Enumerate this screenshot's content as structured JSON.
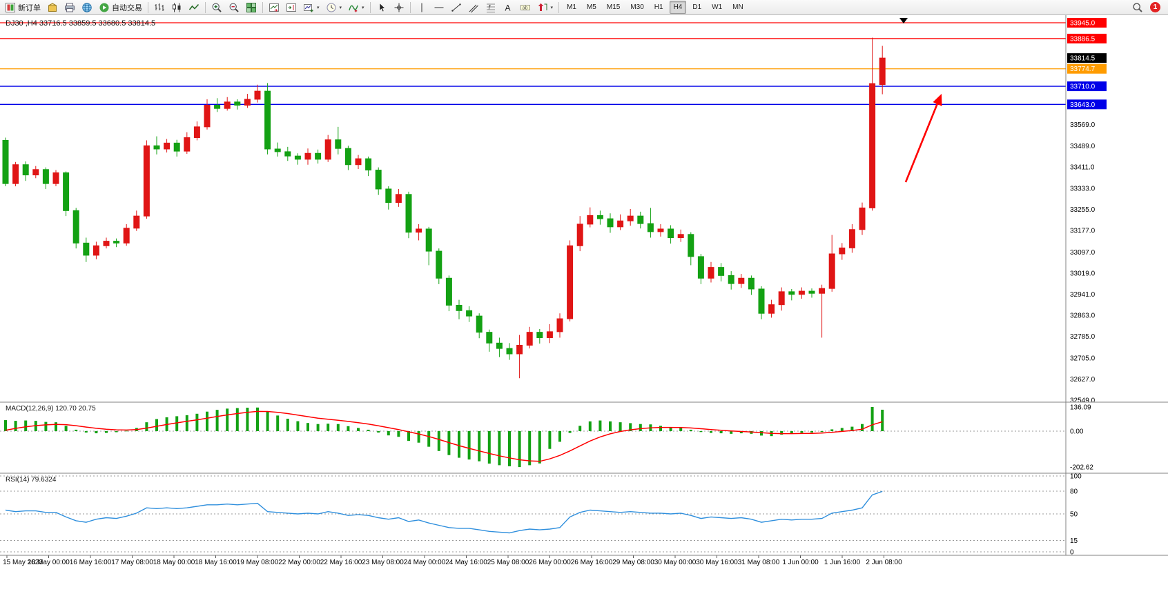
{
  "toolbar": {
    "groups": [
      {
        "items": [
          {
            "name": "new-order",
            "icon": "new-order",
            "label": "新订单"
          },
          {
            "name": "market",
            "icon": "cube"
          },
          {
            "name": "print",
            "icon": "printer"
          },
          {
            "name": "community",
            "icon": "globe"
          },
          {
            "name": "autotrading",
            "icon": "play",
            "label": "自动交易"
          }
        ]
      },
      {
        "items": [
          {
            "name": "bar-chart-mode",
            "icon": "bars"
          },
          {
            "name": "candle-chart-mode",
            "icon": "candles"
          },
          {
            "name": "line-chart-mode",
            "icon": "polyline"
          }
        ]
      },
      {
        "items": [
          {
            "name": "zoom-in",
            "icon": "zoom-in"
          },
          {
            "name": "zoom-out",
            "icon": "zoom-out"
          },
          {
            "name": "tile-windows",
            "icon": "tiles"
          }
        ]
      },
      {
        "items": [
          {
            "name": "auto-scroll",
            "icon": "chart-arrow"
          },
          {
            "name": "chart-shift",
            "icon": "chart-shift"
          },
          {
            "name": "new-chart",
            "icon": "chart-plus",
            "dropdown": true
          },
          {
            "name": "periods",
            "icon": "clock",
            "dropdown": true
          },
          {
            "name": "indicators-menu",
            "icon": "indicator",
            "dropdown": true
          }
        ]
      },
      {
        "items": [
          {
            "name": "cursor-tool",
            "icon": "cursor"
          },
          {
            "name": "crosshair-tool",
            "icon": "crosshair"
          }
        ]
      },
      {
        "items": [
          {
            "name": "vertical-line-tool",
            "icon": "vline"
          },
          {
            "name": "horizontal-line-tool",
            "icon": "hline"
          },
          {
            "name": "trendline-tool",
            "icon": "tline"
          },
          {
            "name": "channel-tool",
            "icon": "channel"
          },
          {
            "name": "fibonacci-tool",
            "icon": "fibo"
          },
          {
            "name": "text-tool",
            "icon": "textA"
          },
          {
            "name": "label-tool",
            "icon": "label"
          },
          {
            "name": "arrows-tool",
            "icon": "arrowobj",
            "dropdown": true
          }
        ]
      }
    ],
    "timeframes": [
      "M1",
      "M5",
      "M15",
      "M30",
      "H1",
      "H4",
      "D1",
      "W1",
      "MN"
    ],
    "active_timeframe": "H4",
    "notification_count": "1"
  },
  "chart_data": {
    "type": "candlestick",
    "title": "DJ30 ,H4 33716.5 33859.5 33680.5 33814.5",
    "symbol": "DJ30",
    "period": "H4",
    "ohlc": {
      "open": 33716.5,
      "high": 33859.5,
      "low": 33680.5,
      "close": 33814.5
    },
    "convention": "red = bullish, green = bearish",
    "colors": {
      "bull": "#e01515",
      "bear": "#13a113",
      "hline_red": "#ff0000",
      "hline_orange": "#ff9c00",
      "hline_blue": "#0000e8",
      "current_tag": "#000000",
      "macd_histogram": "#13a113",
      "macd_signal": "#ff0000",
      "rsi_line": "#2f8fdd"
    },
    "candles": [
      [
        33510,
        33520,
        33340,
        33350
      ],
      [
        33350,
        33430,
        33340,
        33420
      ],
      [
        33420,
        33432,
        33360,
        33382
      ],
      [
        33382,
        33415,
        33370,
        33402
      ],
      [
        33402,
        33410,
        33330,
        33350
      ],
      [
        33350,
        33400,
        33340,
        33390
      ],
      [
        33390,
        33395,
        33230,
        33250
      ],
      [
        33250,
        33260,
        33110,
        33130
      ],
      [
        33130,
        33150,
        33060,
        33085
      ],
      [
        33085,
        33135,
        33070,
        33120
      ],
      [
        33120,
        33150,
        33110,
        33137
      ],
      [
        33137,
        33147,
        33115,
        33130
      ],
      [
        33130,
        33200,
        33120,
        33185
      ],
      [
        33185,
        33250,
        33175,
        33230
      ],
      [
        33230,
        33510,
        33220,
        33490
      ],
      [
        33490,
        33525,
        33458,
        33478
      ],
      [
        33478,
        33515,
        33465,
        33500
      ],
      [
        33500,
        33512,
        33450,
        33470
      ],
      [
        33470,
        33540,
        33460,
        33520
      ],
      [
        33520,
        33580,
        33510,
        33560
      ],
      [
        33560,
        33662,
        33550,
        33640
      ],
      [
        33640,
        33666,
        33615,
        33628
      ],
      [
        33628,
        33670,
        33620,
        33652
      ],
      [
        33652,
        33662,
        33624,
        33640
      ],
      [
        33640,
        33682,
        33630,
        33662
      ],
      [
        33662,
        33716,
        33650,
        33692
      ],
      [
        33692,
        33722,
        33458,
        33478
      ],
      [
        33478,
        33502,
        33450,
        33468
      ],
      [
        33468,
        33486,
        33434,
        33452
      ],
      [
        33452,
        33462,
        33420,
        33440
      ],
      [
        33440,
        33480,
        33420,
        33462
      ],
      [
        33462,
        33476,
        33424,
        33440
      ],
      [
        33440,
        33530,
        33430,
        33512
      ],
      [
        33512,
        33560,
        33458,
        33480
      ],
      [
        33480,
        33490,
        33400,
        33420
      ],
      [
        33420,
        33456,
        33404,
        33442
      ],
      [
        33442,
        33450,
        33378,
        33400
      ],
      [
        33400,
        33410,
        33308,
        33330
      ],
      [
        33330,
        33340,
        33254,
        33280
      ],
      [
        33280,
        33330,
        33264,
        33310
      ],
      [
        33310,
        33320,
        33148,
        33170
      ],
      [
        33170,
        33200,
        33140,
        33182
      ],
      [
        33182,
        33190,
        33048,
        33100
      ],
      [
        33100,
        33110,
        32978,
        33000
      ],
      [
        33000,
        33010,
        32878,
        32900
      ],
      [
        32900,
        32920,
        32848,
        32880
      ],
      [
        32880,
        32896,
        32838,
        32860
      ],
      [
        32860,
        32870,
        32778,
        32800
      ],
      [
        32800,
        32810,
        32728,
        32760
      ],
      [
        32760,
        32780,
        32708,
        32740
      ],
      [
        32740,
        32760,
        32698,
        32720
      ],
      [
        32720,
        32790,
        32630,
        32752
      ],
      [
        32752,
        32820,
        32740,
        32800
      ],
      [
        32800,
        32812,
        32758,
        32780
      ],
      [
        32780,
        32830,
        32760,
        32802
      ],
      [
        32802,
        32870,
        32780,
        32850
      ],
      [
        32850,
        33140,
        32840,
        33120
      ],
      [
        33120,
        33230,
        33100,
        33200
      ],
      [
        33200,
        33262,
        33188,
        33232
      ],
      [
        33232,
        33250,
        33198,
        33220
      ],
      [
        33220,
        33240,
        33168,
        33190
      ],
      [
        33190,
        33236,
        33178,
        33212
      ],
      [
        33212,
        33256,
        33194,
        33230
      ],
      [
        33230,
        33246,
        33184,
        33202
      ],
      [
        33202,
        33260,
        33150,
        33172
      ],
      [
        33172,
        33200,
        33154,
        33182
      ],
      [
        33182,
        33196,
        33128,
        33150
      ],
      [
        33150,
        33180,
        33134,
        33162
      ],
      [
        33162,
        33170,
        33048,
        33080
      ],
      [
        33080,
        33090,
        32978,
        33000
      ],
      [
        33000,
        33060,
        32984,
        33040
      ],
      [
        33040,
        33056,
        32988,
        33010
      ],
      [
        33010,
        33026,
        32958,
        32980
      ],
      [
        32980,
        33016,
        32964,
        33000
      ],
      [
        33000,
        33010,
        32938,
        32960
      ],
      [
        32960,
        32970,
        32848,
        32870
      ],
      [
        32870,
        32920,
        32854,
        32902
      ],
      [
        32902,
        32966,
        32880,
        32950
      ],
      [
        32950,
        32960,
        32918,
        32940
      ],
      [
        32940,
        32966,
        32924,
        32952
      ],
      [
        32952,
        32962,
        32928,
        32944
      ],
      [
        32944,
        32976,
        32780,
        32962
      ],
      [
        32962,
        33160,
        32950,
        33090
      ],
      [
        33090,
        33130,
        33068,
        33112
      ],
      [
        33112,
        33200,
        33094,
        33180
      ],
      [
        33180,
        33280,
        33160,
        33260
      ],
      [
        33260,
        33890,
        33250,
        33720
      ],
      [
        33716.5,
        33859.5,
        33680.5,
        33814.5
      ]
    ],
    "hlines": [
      {
        "label": "33945.0",
        "value": 33945.0,
        "color": "#ff0000"
      },
      {
        "label": "33886.5",
        "value": 33886.5,
        "color": "#ff0000"
      },
      {
        "label": "33774.7",
        "value": 33774.7,
        "color": "#ff9c00"
      },
      {
        "label": "33710.0",
        "value": 33710.0,
        "color": "#0000e8"
      },
      {
        "label": "33643.0",
        "value": 33643.0,
        "color": "#0000e8"
      }
    ],
    "current_price": {
      "label": "33814.5",
      "value": 33814.5
    },
    "price_axis_labels": [
      "33569.0",
      "33489.0",
      "33411.0",
      "33333.0",
      "33255.0",
      "33177.0",
      "33097.0",
      "33019.0",
      "32941.0",
      "32863.0",
      "32785.0",
      "32705.0",
      "32627.0",
      "32549.0"
    ],
    "time_axis_labels": [
      "15 May 2023",
      "16 May 00:00",
      "16 May 16:00",
      "17 May 08:00",
      "18 May 00:00",
      "18 May 16:00",
      "19 May 08:00",
      "22 May 00:00",
      "22 May 16:00",
      "23 May 08:00",
      "24 May 00:00",
      "24 May 16:00",
      "25 May 08:00",
      "26 May 00:00",
      "26 May 16:00",
      "29 May 08:00",
      "30 May 00:00",
      "30 May 16:00",
      "31 May 08:00",
      "1 Jun 00:00",
      "1 Jun 16:00",
      "2 Jun 08:00"
    ],
    "macd": {
      "header": "MACD(12,26,9) 120.70 20.75",
      "name": "MACD(12,26,9)",
      "main_value": "120.70",
      "signal_value": "20.75",
      "scale_labels": [
        "136.09",
        "0.00",
        "-202.62"
      ],
      "histogram": [
        62,
        58,
        60,
        58,
        52,
        50,
        30,
        8,
        -8,
        -12,
        -10,
        -6,
        2,
        18,
        50,
        68,
        78,
        84,
        90,
        98,
        110,
        120,
        127,
        130,
        132,
        133,
        110,
        88,
        70,
        56,
        46,
        40,
        42,
        40,
        28,
        18,
        8,
        -8,
        -24,
        -32,
        -55,
        -65,
        -88,
        -112,
        -135,
        -150,
        -160,
        -170,
        -183,
        -192,
        -198,
        -202.62,
        -192,
        -182,
        -100,
        -60,
        -10,
        30,
        55,
        60,
        55,
        50,
        45,
        40,
        38,
        30,
        22,
        18,
        8,
        -5,
        -10,
        -12,
        -15,
        -12,
        -15,
        -25,
        -28,
        -20,
        -15,
        -10,
        -8,
        -5,
        10,
        18,
        25,
        40,
        136.09,
        120.7
      ]
    },
    "rsi": {
      "header": "RSI(14) 79.6324",
      "name": "RSI(14)",
      "value": "79.6324",
      "scale_labels": [
        "100",
        "80",
        "50",
        "15",
        "0"
      ],
      "levels": [
        80,
        50,
        15
      ],
      "values": [
        55,
        53,
        54,
        54,
        52,
        52,
        46,
        41,
        39,
        43,
        45,
        44,
        47,
        51,
        58,
        57,
        58,
        57,
        58,
        60,
        62,
        62,
        63,
        62,
        63,
        64,
        53,
        52,
        51,
        50,
        51,
        50,
        53,
        51,
        48,
        49,
        48,
        45,
        43,
        45,
        40,
        42,
        38,
        35,
        32,
        31,
        31,
        29,
        27,
        26,
        25,
        28,
        30,
        29,
        30,
        32,
        46,
        52,
        55,
        54,
        53,
        52,
        53,
        52,
        51,
        51,
        50,
        51,
        48,
        44,
        46,
        45,
        44,
        45,
        43,
        39,
        41,
        43,
        42,
        43,
        43,
        44,
        51,
        53,
        55,
        58,
        75,
        79.63
      ]
    },
    "annotations": [
      {
        "name": "trend-arrow",
        "shape": "arrow-up-right",
        "color": "#ff0000"
      },
      {
        "name": "time-marker",
        "shape": "triangle-down",
        "color": "#000000"
      }
    ]
  }
}
